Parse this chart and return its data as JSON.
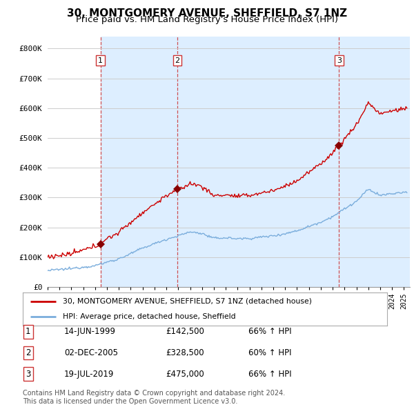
{
  "title": "30, MONTGOMERY AVENUE, SHEFFIELD, S7 1NZ",
  "subtitle": "Price paid vs. HM Land Registry's House Price Index (HPI)",
  "ylabel_ticks": [
    "£0",
    "£100K",
    "£200K",
    "£300K",
    "£400K",
    "£500K",
    "£600K",
    "£700K",
    "£800K"
  ],
  "ytick_values": [
    0,
    100000,
    200000,
    300000,
    400000,
    500000,
    600000,
    700000,
    800000
  ],
  "ylim": [
    0,
    840000
  ],
  "xlim_start": 1995.0,
  "xlim_end": 2025.5,
  "sale_dates": [
    1999.45,
    2005.92,
    2019.54
  ],
  "sale_prices": [
    142500,
    328500,
    475000
  ],
  "sale_labels": [
    "1",
    "2",
    "3"
  ],
  "red_line_color": "#cc0000",
  "blue_line_color": "#7aaddc",
  "shade_color": "#ddeeff",
  "sale_marker_color": "#880000",
  "dashed_line_color": "#cc3333",
  "background_color": "#ffffff",
  "grid_color": "#cccccc",
  "legend_label_red": "30, MONTGOMERY AVENUE, SHEFFIELD, S7 1NZ (detached house)",
  "legend_label_blue": "HPI: Average price, detached house, Sheffield",
  "table_rows": [
    {
      "num": "1",
      "date": "14-JUN-1999",
      "price": "£142,500",
      "hpi": "66% ↑ HPI"
    },
    {
      "num": "2",
      "date": "02-DEC-2005",
      "price": "£328,500",
      "hpi": "60% ↑ HPI"
    },
    {
      "num": "3",
      "date": "19-JUL-2019",
      "price": "£475,000",
      "hpi": "66% ↑ HPI"
    }
  ],
  "footnote": "Contains HM Land Registry data © Crown copyright and database right 2024.\nThis data is licensed under the Open Government Licence v3.0."
}
